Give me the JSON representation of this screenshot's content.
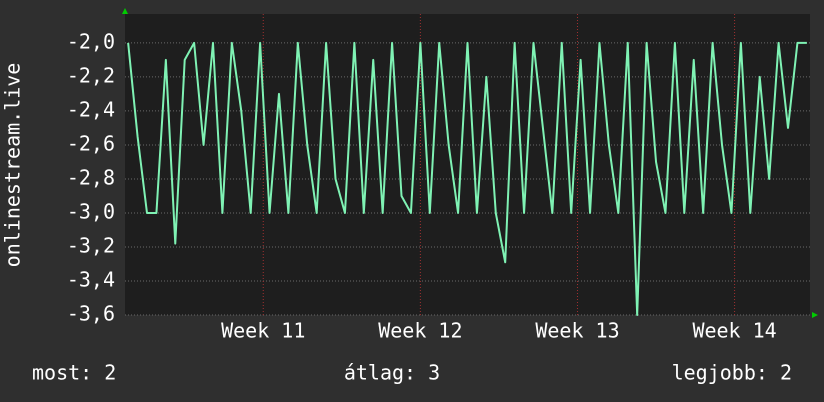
{
  "chart_data": {
    "type": "line",
    "y_label": "onlinestream.live",
    "x": [
      10.14,
      10.2,
      10.26,
      10.32,
      10.38,
      10.44,
      10.5,
      10.56,
      10.62,
      10.68,
      10.74,
      10.8,
      10.86,
      10.92,
      10.98,
      11.04,
      11.1,
      11.16,
      11.22,
      11.28,
      11.34,
      11.4,
      11.46,
      11.52,
      11.58,
      11.64,
      11.7,
      11.76,
      11.82,
      11.88,
      11.94,
      12.0,
      12.06,
      12.12,
      12.18,
      12.24,
      12.3,
      12.36,
      12.42,
      12.48,
      12.54,
      12.6,
      12.66,
      12.72,
      12.78,
      12.84,
      12.9,
      12.96,
      13.02,
      13.08,
      13.14,
      13.2,
      13.26,
      13.32,
      13.38,
      13.44,
      13.5,
      13.56,
      13.62,
      13.68,
      13.74,
      13.8,
      13.86,
      13.92,
      13.98,
      14.04,
      14.1,
      14.16,
      14.22,
      14.28,
      14.34,
      14.4,
      14.46
    ],
    "series": [
      {
        "color": "#7ff2b4",
        "values": [
          -2.0,
          -2.55,
          -3.0,
          -3.0,
          -2.1,
          -3.18,
          -2.1,
          -2.0,
          -2.6,
          -2.0,
          -3.0,
          -2.0,
          -2.4,
          -3.0,
          -2.0,
          -3.0,
          -2.3,
          -3.0,
          -2.0,
          -2.6,
          -3.0,
          -2.0,
          -2.8,
          -3.0,
          -2.0,
          -3.0,
          -2.1,
          -3.0,
          -2.0,
          -2.9,
          -3.0,
          -2.0,
          -3.0,
          -2.0,
          -2.6,
          -3.0,
          -2.0,
          -3.0,
          -2.2,
          -3.0,
          -3.29,
          -2.0,
          -3.0,
          -2.0,
          -2.5,
          -3.0,
          -2.0,
          -3.0,
          -2.1,
          -3.0,
          -2.0,
          -2.6,
          -3.0,
          -2.0,
          -3.6,
          -2.0,
          -2.7,
          -3.0,
          -2.0,
          -3.0,
          -2.1,
          -3.0,
          -2.0,
          -2.6,
          -3.0,
          -2.0,
          -3.0,
          -2.2,
          -2.8,
          -2.0,
          -2.5,
          -2.0,
          -2.0
        ]
      }
    ],
    "xlim": [
      10.12,
      14.48
    ],
    "xticks": [
      {
        "value": 11,
        "label": "Week 11"
      },
      {
        "value": 12,
        "label": "Week 12"
      },
      {
        "value": 13,
        "label": "Week 13"
      },
      {
        "value": 14,
        "label": "Week 14"
      }
    ],
    "ylim": [
      -3.6,
      -1.83
    ],
    "yticks": [
      {
        "value": -2.0,
        "label": "-2,0"
      },
      {
        "value": -2.2,
        "label": "-2,2"
      },
      {
        "value": -2.4,
        "label": "-2,4"
      },
      {
        "value": -2.6,
        "label": "-2,6"
      },
      {
        "value": -2.8,
        "label": "-2,8"
      },
      {
        "value": -3.0,
        "label": "-3,0"
      },
      {
        "value": -3.2,
        "label": "-3,2"
      },
      {
        "value": -3.4,
        "label": "-3,4"
      },
      {
        "value": -3.6,
        "label": "-3,6"
      }
    ],
    "grid": true,
    "footer": [
      "most: 2",
      "átlag: 3",
      "legjobb: 2"
    ]
  }
}
